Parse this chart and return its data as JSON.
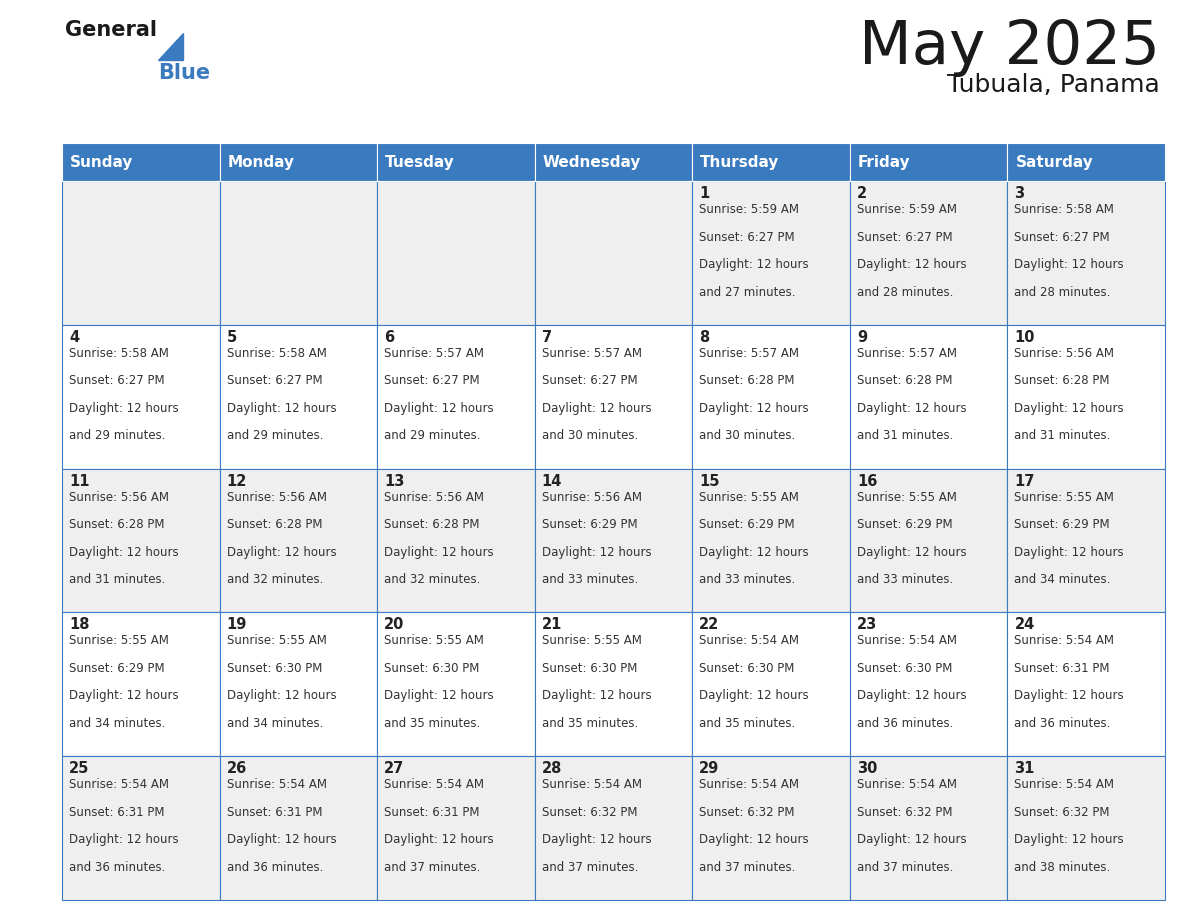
{
  "title": "May 2025",
  "subtitle": "Tubuala, Panama",
  "header_color": "#3a7abf",
  "header_text_color": "#ffffff",
  "weekdays": [
    "Sunday",
    "Monday",
    "Tuesday",
    "Wednesday",
    "Thursday",
    "Friday",
    "Saturday"
  ],
  "odd_row_color": "#efefef",
  "even_row_color": "#ffffff",
  "cell_border_color": "#3a7abf",
  "day_text_color": "#222222",
  "info_text_color": "#333333",
  "title_color": "#1a1a1a",
  "subtitle_color": "#1a1a1a",
  "logo_general_color": "#1a1a1a",
  "logo_blue_color": "#3a7abf",
  "weeks": [
    [
      {
        "day": null,
        "sunrise": null,
        "sunset": null,
        "daylight": null
      },
      {
        "day": null,
        "sunrise": null,
        "sunset": null,
        "daylight": null
      },
      {
        "day": null,
        "sunrise": null,
        "sunset": null,
        "daylight": null
      },
      {
        "day": null,
        "sunrise": null,
        "sunset": null,
        "daylight": null
      },
      {
        "day": 1,
        "sunrise": "5:59 AM",
        "sunset": "6:27 PM",
        "daylight": "12 hours and 27 minutes."
      },
      {
        "day": 2,
        "sunrise": "5:59 AM",
        "sunset": "6:27 PM",
        "daylight": "12 hours and 28 minutes."
      },
      {
        "day": 3,
        "sunrise": "5:58 AM",
        "sunset": "6:27 PM",
        "daylight": "12 hours and 28 minutes."
      }
    ],
    [
      {
        "day": 4,
        "sunrise": "5:58 AM",
        "sunset": "6:27 PM",
        "daylight": "12 hours and 29 minutes."
      },
      {
        "day": 5,
        "sunrise": "5:58 AM",
        "sunset": "6:27 PM",
        "daylight": "12 hours and 29 minutes."
      },
      {
        "day": 6,
        "sunrise": "5:57 AM",
        "sunset": "6:27 PM",
        "daylight": "12 hours and 29 minutes."
      },
      {
        "day": 7,
        "sunrise": "5:57 AM",
        "sunset": "6:27 PM",
        "daylight": "12 hours and 30 minutes."
      },
      {
        "day": 8,
        "sunrise": "5:57 AM",
        "sunset": "6:28 PM",
        "daylight": "12 hours and 30 minutes."
      },
      {
        "day": 9,
        "sunrise": "5:57 AM",
        "sunset": "6:28 PM",
        "daylight": "12 hours and 31 minutes."
      },
      {
        "day": 10,
        "sunrise": "5:56 AM",
        "sunset": "6:28 PM",
        "daylight": "12 hours and 31 minutes."
      }
    ],
    [
      {
        "day": 11,
        "sunrise": "5:56 AM",
        "sunset": "6:28 PM",
        "daylight": "12 hours and 31 minutes."
      },
      {
        "day": 12,
        "sunrise": "5:56 AM",
        "sunset": "6:28 PM",
        "daylight": "12 hours and 32 minutes."
      },
      {
        "day": 13,
        "sunrise": "5:56 AM",
        "sunset": "6:28 PM",
        "daylight": "12 hours and 32 minutes."
      },
      {
        "day": 14,
        "sunrise": "5:56 AM",
        "sunset": "6:29 PM",
        "daylight": "12 hours and 33 minutes."
      },
      {
        "day": 15,
        "sunrise": "5:55 AM",
        "sunset": "6:29 PM",
        "daylight": "12 hours and 33 minutes."
      },
      {
        "day": 16,
        "sunrise": "5:55 AM",
        "sunset": "6:29 PM",
        "daylight": "12 hours and 33 minutes."
      },
      {
        "day": 17,
        "sunrise": "5:55 AM",
        "sunset": "6:29 PM",
        "daylight": "12 hours and 34 minutes."
      }
    ],
    [
      {
        "day": 18,
        "sunrise": "5:55 AM",
        "sunset": "6:29 PM",
        "daylight": "12 hours and 34 minutes."
      },
      {
        "day": 19,
        "sunrise": "5:55 AM",
        "sunset": "6:30 PM",
        "daylight": "12 hours and 34 minutes."
      },
      {
        "day": 20,
        "sunrise": "5:55 AM",
        "sunset": "6:30 PM",
        "daylight": "12 hours and 35 minutes."
      },
      {
        "day": 21,
        "sunrise": "5:55 AM",
        "sunset": "6:30 PM",
        "daylight": "12 hours and 35 minutes."
      },
      {
        "day": 22,
        "sunrise": "5:54 AM",
        "sunset": "6:30 PM",
        "daylight": "12 hours and 35 minutes."
      },
      {
        "day": 23,
        "sunrise": "5:54 AM",
        "sunset": "6:30 PM",
        "daylight": "12 hours and 36 minutes."
      },
      {
        "day": 24,
        "sunrise": "5:54 AM",
        "sunset": "6:31 PM",
        "daylight": "12 hours and 36 minutes."
      }
    ],
    [
      {
        "day": 25,
        "sunrise": "5:54 AM",
        "sunset": "6:31 PM",
        "daylight": "12 hours and 36 minutes."
      },
      {
        "day": 26,
        "sunrise": "5:54 AM",
        "sunset": "6:31 PM",
        "daylight": "12 hours and 36 minutes."
      },
      {
        "day": 27,
        "sunrise": "5:54 AM",
        "sunset": "6:31 PM",
        "daylight": "12 hours and 37 minutes."
      },
      {
        "day": 28,
        "sunrise": "5:54 AM",
        "sunset": "6:32 PM",
        "daylight": "12 hours and 37 minutes."
      },
      {
        "day": 29,
        "sunrise": "5:54 AM",
        "sunset": "6:32 PM",
        "daylight": "12 hours and 37 minutes."
      },
      {
        "day": 30,
        "sunrise": "5:54 AM",
        "sunset": "6:32 PM",
        "daylight": "12 hours and 37 minutes."
      },
      {
        "day": 31,
        "sunrise": "5:54 AM",
        "sunset": "6:32 PM",
        "daylight": "12 hours and 38 minutes."
      }
    ]
  ]
}
